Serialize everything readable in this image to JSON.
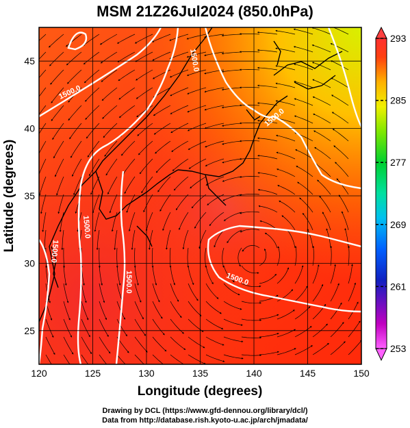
{
  "title": "MSM 21Z26Jul2024 (850.0hPa)",
  "x_axis": {
    "label": "Longitude (degrees)",
    "ticks": [
      "120",
      "125",
      "130",
      "135",
      "140",
      "145",
      "150"
    ],
    "range": [
      120,
      150
    ]
  },
  "y_axis": {
    "label": "Latitude  (degrees)",
    "ticks": [
      "25",
      "30",
      "35",
      "40",
      "45"
    ],
    "range": [
      22.5,
      47.5
    ]
  },
  "colorbar": {
    "labels": [
      "293",
      "285",
      "277",
      "269",
      "261",
      "253"
    ],
    "range": [
      253,
      293
    ],
    "colors": [
      "#ff50ff",
      "#d000d0",
      "#2020c0",
      "#0050ff",
      "#00b8ff",
      "#00e0b0",
      "#00d040",
      "#60e000",
      "#c0f000",
      "#f0f000",
      "#ffc000",
      "#ff8000",
      "#ff3000",
      "#ff6060"
    ]
  },
  "contours": {
    "labels": [
      "1500.0",
      "1500.0",
      "1500.0",
      "1500.0",
      "1500.0",
      "1500.0",
      "1500.0"
    ],
    "color": "#ffffff"
  },
  "credits": {
    "line1": "Drawing by DCL (https://www.gfd-dennou.org/library/dcl/)",
    "line2": "Data from http://database.rish.kyoto-u.ac.jp/arch/jmadata/"
  }
}
